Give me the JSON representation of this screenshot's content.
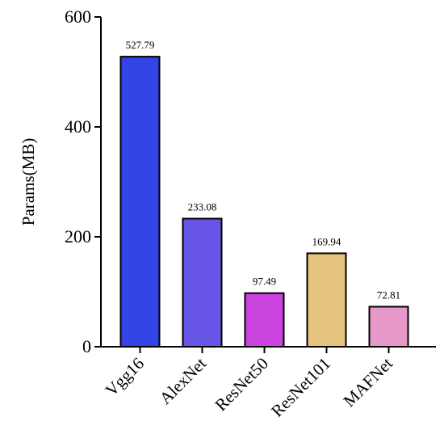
{
  "chart_data": {
    "type": "bar",
    "categories": [
      "Vgg16",
      "AlexNet",
      "ResNet50",
      "ResNet101",
      "MAFNet"
    ],
    "values": [
      527.79,
      233.08,
      97.49,
      169.94,
      72.81
    ],
    "data_labels": [
      "527.79",
      "233.08",
      "97.49",
      "169.94",
      "72.81"
    ],
    "colors": [
      "#3344e6",
      "#6655e6",
      "#cc44e0",
      "#e6c47e",
      "#e699c8"
    ],
    "ylabel": "Params(MB)",
    "xlabel": "",
    "ylim": [
      0,
      600
    ],
    "yticks": [
      0,
      200,
      400,
      600
    ],
    "grid": false,
    "legend": "none"
  }
}
